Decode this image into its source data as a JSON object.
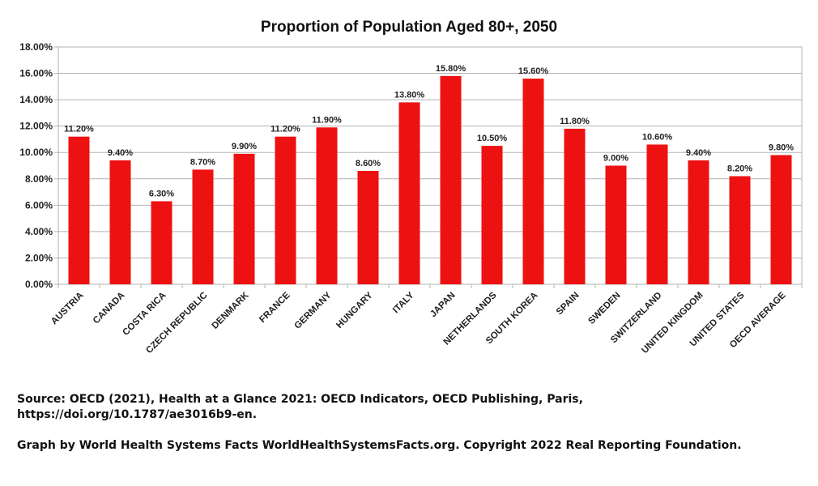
{
  "chart_data": {
    "type": "bar",
    "title": "Proportion of Population Aged 80+, 2050",
    "xlabel": "",
    "ylabel": "",
    "ylim": [
      0,
      18
    ],
    "yticks": [
      "0.00%",
      "2.00%",
      "4.00%",
      "6.00%",
      "8.00%",
      "10.00%",
      "12.00%",
      "14.00%",
      "16.00%",
      "18.00%"
    ],
    "grid": true,
    "legend": "none",
    "bar_color": "#ee1111",
    "categories": [
      "AUSTRIA",
      "CANADA",
      "COSTA RICA",
      "CZECH REPUBLIC",
      "DENMARK",
      "FRANCE",
      "GERMANY",
      "HUNGARY",
      "ITALY",
      "JAPAN",
      "NETHERLANDS",
      "SOUTH KOREA",
      "SPAIN",
      "SWEDEN",
      "SWITZERLAND",
      "UNITED KINGDOM",
      "UNITED STATES",
      "OECD AVERAGE"
    ],
    "values": [
      11.2,
      9.4,
      6.3,
      8.7,
      9.9,
      11.2,
      11.9,
      8.6,
      13.8,
      15.8,
      10.5,
      15.6,
      11.8,
      9.0,
      10.6,
      9.4,
      8.2,
      9.8
    ],
    "data_labels": [
      "11.20%",
      "9.40%",
      "6.30%",
      "8.70%",
      "9.90%",
      "11.20%",
      "11.90%",
      "8.60%",
      "13.80%",
      "15.80%",
      "10.50%",
      "15.60%",
      "11.80%",
      "9.00%",
      "10.60%",
      "9.40%",
      "8.20%",
      "9.80%"
    ]
  },
  "notes": {
    "source": "Source: OECD (2021), Health at a Glance 2021: OECD Indicators, OECD Publishing, Paris, https://doi.org/10.1787/ae3016b9-en.",
    "credit": "Graph by World Health Systems Facts WorldHealthSystemsFacts.org. Copyright 2022 Real Reporting Foundation."
  }
}
